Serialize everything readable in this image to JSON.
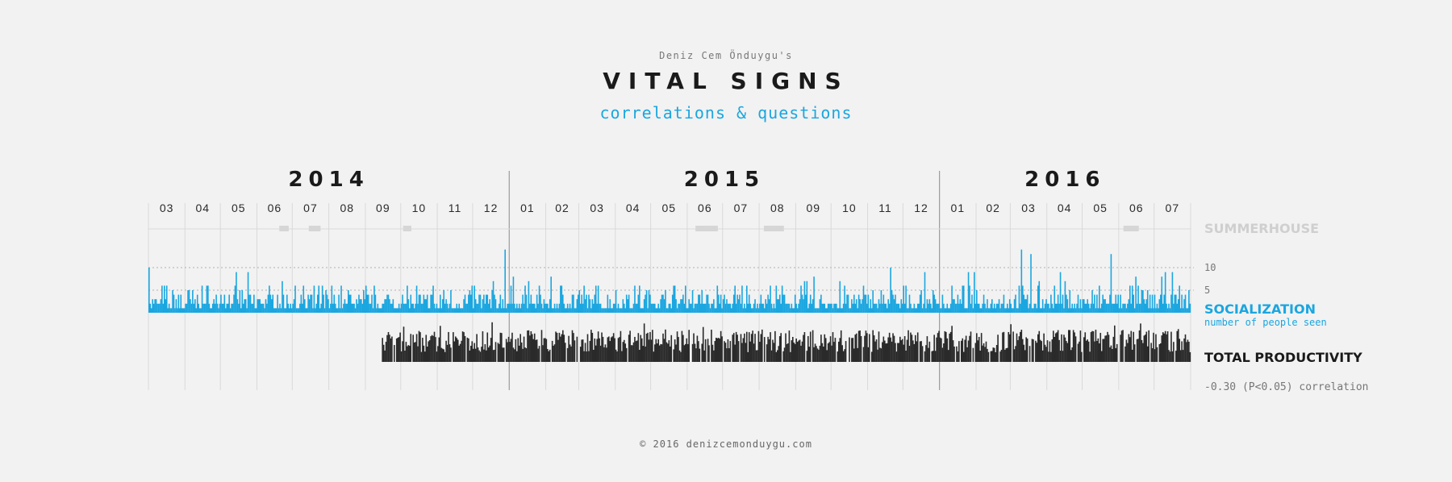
{
  "header": {
    "author": "Deniz Cem Önduygu's",
    "title": "VITAL SIGNS",
    "subtitle": "correlations & questions"
  },
  "footer": "© 2016 denizcemonduygu.com",
  "colors": {
    "background": "#f2f2f2",
    "socialization": "#1aa6e0",
    "productivity": "#2a2a2a",
    "summerhouse": "#d6d6d6",
    "grid": "#d9d9d9"
  },
  "chart_data": {
    "type": "bar",
    "title": "VITAL SIGNS",
    "subtitle": "correlations & questions",
    "x_axis": {
      "type": "time",
      "range": [
        "2014-03-01",
        "2016-07-31"
      ],
      "years": [
        "2014",
        "2015",
        "2016"
      ],
      "months": [
        "03",
        "04",
        "05",
        "06",
        "07",
        "08",
        "09",
        "10",
        "11",
        "12",
        "01",
        "02",
        "03",
        "04",
        "05",
        "06",
        "07",
        "08",
        "09",
        "10",
        "11",
        "12",
        "01",
        "02",
        "03",
        "04",
        "05",
        "06",
        "07"
      ]
    },
    "rows": [
      {
        "name": "SUMMERHOUSE",
        "kind": "periods",
        "periods": [
          [
            "2014-06-20",
            "2014-06-28"
          ],
          [
            "2014-07-15",
            "2014-07-25"
          ],
          [
            "2014-10-03",
            "2014-10-10"
          ],
          [
            "2015-06-08",
            "2015-06-27"
          ],
          [
            "2015-08-05",
            "2015-08-22"
          ],
          [
            "2016-06-05",
            "2016-06-18"
          ]
        ]
      },
      {
        "name": "SOCIALIZATION",
        "sublabel": "number of people seen",
        "kind": "daily-bars",
        "y_ticks": [
          5,
          10
        ],
        "ylim": [
          0,
          12
        ],
        "start": "2014-03-01",
        "end": "2016-07-31",
        "highlights": [
          {
            "date": "2014-03-01",
            "value": 10
          },
          {
            "date": "2014-12-28",
            "value": 14
          },
          {
            "date": "2015-11-20",
            "value": 10
          },
          {
            "date": "2016-03-10",
            "value": 14
          },
          {
            "date": "2016-03-18",
            "value": 13
          },
          {
            "date": "2016-05-25",
            "value": 13
          }
        ]
      },
      {
        "name": "TOTAL PRODUCTIVITY",
        "kind": "daily-bars",
        "start": "2014-09-15",
        "end": "2016-07-31",
        "correlation_text": "-0.30 (P<0.05) correlation"
      }
    ]
  }
}
